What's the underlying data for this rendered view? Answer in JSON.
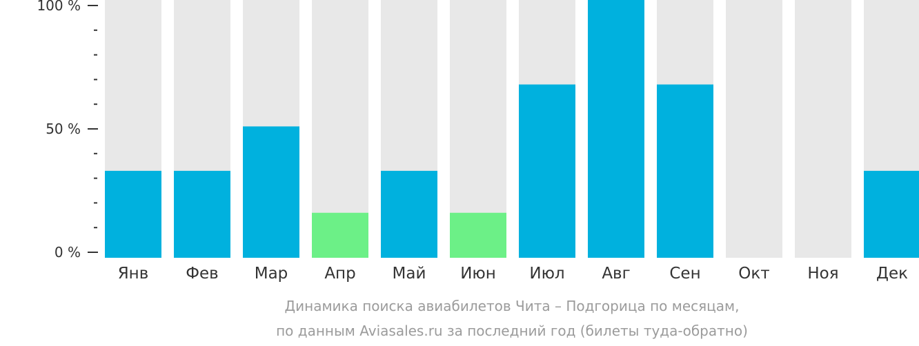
{
  "chart_data": {
    "type": "bar",
    "categories": [
      "Янв",
      "Фев",
      "Мар",
      "Апр",
      "Май",
      "Июн",
      "Июл",
      "Авг",
      "Сен",
      "Окт",
      "Ноя",
      "Дек"
    ],
    "values": [
      33,
      33,
      51,
      16,
      33,
      16,
      68,
      100,
      68,
      0,
      0,
      33
    ],
    "highlight": [
      false,
      false,
      false,
      true,
      false,
      true,
      false,
      false,
      false,
      false,
      false,
      false
    ],
    "ylim": [
      0,
      100
    ],
    "yticks": [
      {
        "value": 100,
        "label": "100 %"
      },
      {
        "value": 50,
        "label": "50 %"
      },
      {
        "value": 0,
        "label": "0 %"
      }
    ],
    "minor_tick_step": 10,
    "caption": [
      "Динамика поиска авиабилетов Чита – Подгорица по месяцам,",
      "по данным Aviasales.ru за последний год (билеты туда-обратно)"
    ],
    "colors": {
      "bar": "#00b1de",
      "highlight": "#6cf087",
      "track": "#e8e8e8",
      "axis": "#333333"
    }
  }
}
